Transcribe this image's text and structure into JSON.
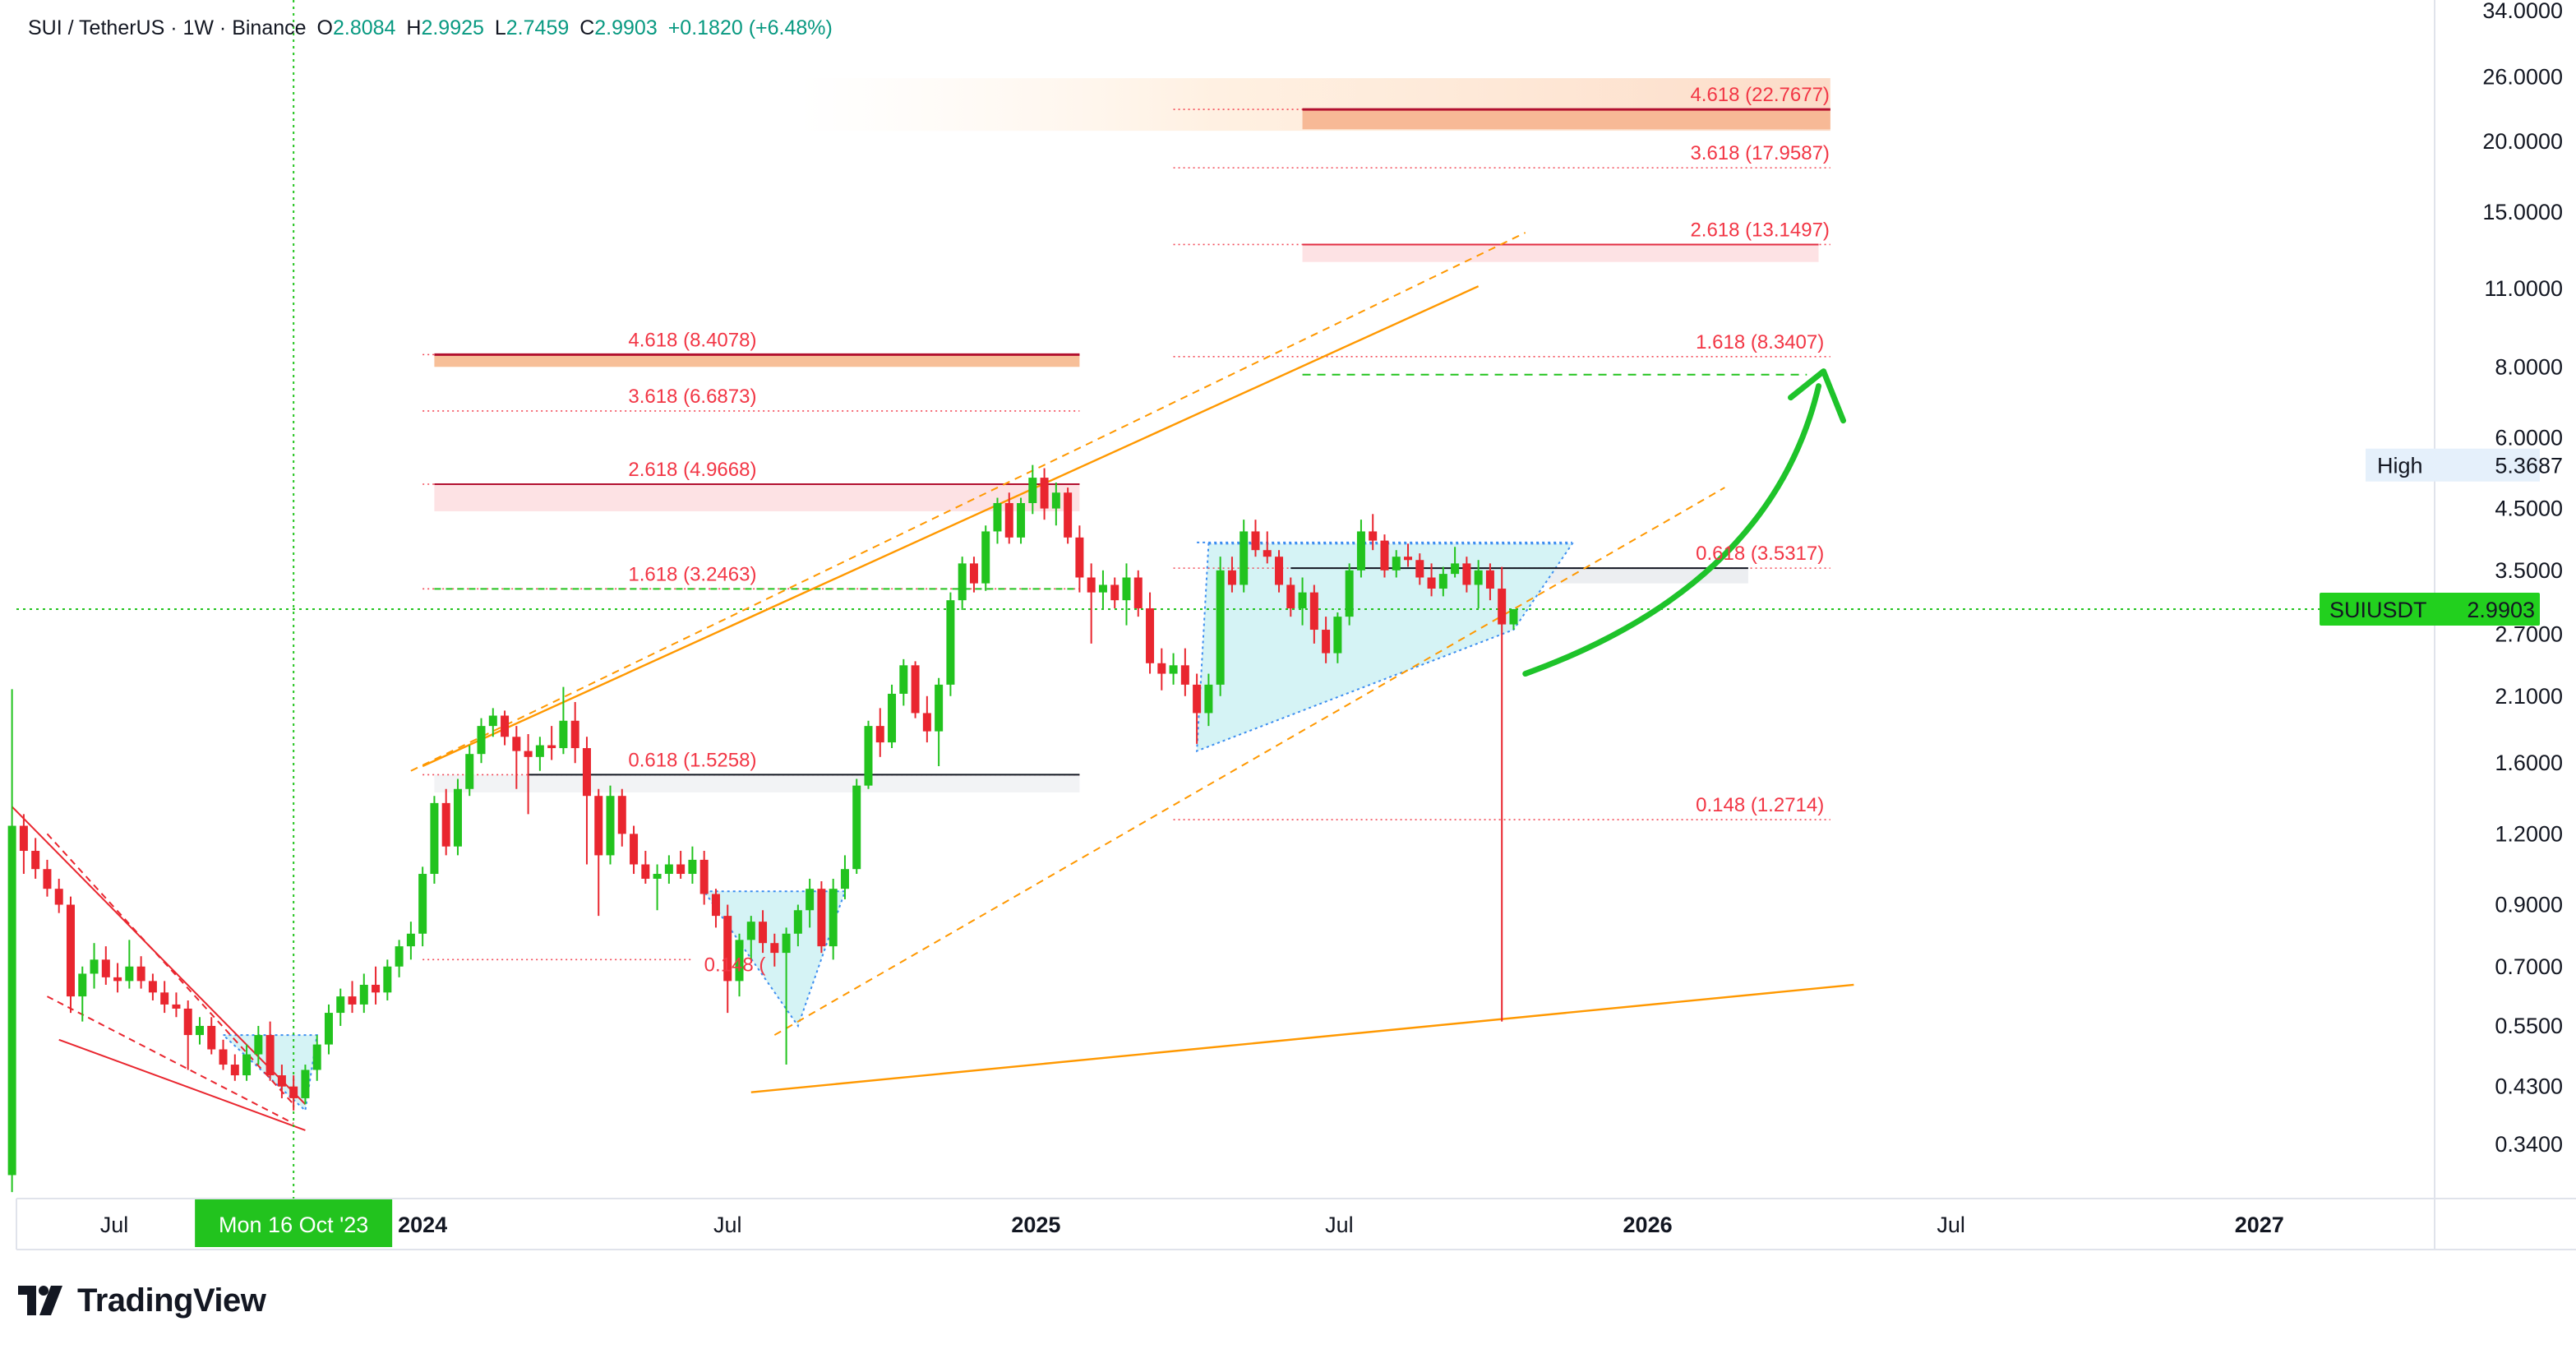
{
  "header": {
    "symbol": "SUI / TetherUS · 1W · Binance",
    "open_label": "O",
    "open": "2.8084",
    "high_label": "H",
    "high": "2.9925",
    "low_label": "L",
    "low": "2.7459",
    "close_label": "C",
    "close": "2.9903",
    "change": "+0.1820 (+6.48%)"
  },
  "brand": {
    "name": "TradingView"
  },
  "colors": {
    "up": "#22c31e",
    "down": "#e9262f",
    "fib": "#f23645",
    "channel": "#ff9800",
    "triangle_fill": "#d5f3f5",
    "crosshair": "#22c31e",
    "arrow": "#1ec32a"
  },
  "chart_data": {
    "type": "candlestick",
    "symbol": "SUIUSDT",
    "interval": "1W",
    "y_scale": "log",
    "ylim": [
      0.28,
      34.0
    ],
    "xlim": [
      "2023-04-17",
      "2027-03-08"
    ],
    "y_ticks": [
      "34.0000",
      "26.0000",
      "20.0000",
      "15.0000",
      "11.0000",
      "8.0000",
      "6.0000",
      "4.5000",
      "3.5000",
      "2.7000",
      "2.1000",
      "1.6000",
      "1.2000",
      "0.9000",
      "0.7000",
      "0.5500",
      "0.4300",
      "0.3400"
    ],
    "x_ticks": [
      {
        "date": "2023-07-01",
        "label": "Jul",
        "bold": false
      },
      {
        "date": "2024-01-01",
        "label": "2024",
        "bold": true
      },
      {
        "date": "2024-07-01",
        "label": "Jul",
        "bold": false
      },
      {
        "date": "2025-01-01",
        "label": "2025",
        "bold": true
      },
      {
        "date": "2025-07-01",
        "label": "Jul",
        "bold": false
      },
      {
        "date": "2026-01-01",
        "label": "2026",
        "bold": true
      },
      {
        "date": "2026-07-01",
        "label": "Jul",
        "bold": false
      },
      {
        "date": "2027-01-01",
        "label": "2027",
        "bold": true
      }
    ],
    "crosshair": {
      "date": "2023-10-16",
      "date_label": "Mon 16 Oct '23",
      "price": 2.9903
    },
    "last_price": {
      "label": "SUIUSDT",
      "value": "2.9903"
    },
    "high_marker": {
      "label": "High",
      "value": "5.3687"
    },
    "candles": [
      {
        "t": "2023-05-01",
        "o": 0.3,
        "h": 2.16,
        "l": 0.28,
        "c": 1.24
      },
      {
        "t": "2023-05-08",
        "o": 1.24,
        "h": 1.3,
        "l": 1.02,
        "c": 1.12
      },
      {
        "t": "2023-05-15",
        "o": 1.12,
        "h": 1.18,
        "l": 1.0,
        "c": 1.04
      },
      {
        "t": "2023-05-22",
        "o": 1.04,
        "h": 1.08,
        "l": 0.93,
        "c": 0.96
      },
      {
        "t": "2023-05-29",
        "o": 0.96,
        "h": 1.0,
        "l": 0.87,
        "c": 0.9
      },
      {
        "t": "2023-06-05",
        "o": 0.9,
        "h": 0.93,
        "l": 0.58,
        "c": 0.62
      },
      {
        "t": "2023-06-12",
        "o": 0.62,
        "h": 0.7,
        "l": 0.56,
        "c": 0.68
      },
      {
        "t": "2023-06-19",
        "o": 0.68,
        "h": 0.77,
        "l": 0.64,
        "c": 0.72
      },
      {
        "t": "2023-06-26",
        "o": 0.72,
        "h": 0.76,
        "l": 0.65,
        "c": 0.67
      },
      {
        "t": "2023-07-03",
        "o": 0.67,
        "h": 0.71,
        "l": 0.63,
        "c": 0.66
      },
      {
        "t": "2023-07-10",
        "o": 0.66,
        "h": 0.78,
        "l": 0.64,
        "c": 0.7
      },
      {
        "t": "2023-07-17",
        "o": 0.7,
        "h": 0.73,
        "l": 0.64,
        "c": 0.66
      },
      {
        "t": "2023-07-24",
        "o": 0.66,
        "h": 0.68,
        "l": 0.61,
        "c": 0.63
      },
      {
        "t": "2023-07-31",
        "o": 0.63,
        "h": 0.66,
        "l": 0.58,
        "c": 0.6
      },
      {
        "t": "2023-08-07",
        "o": 0.6,
        "h": 0.63,
        "l": 0.57,
        "c": 0.59
      },
      {
        "t": "2023-08-14",
        "o": 0.59,
        "h": 0.61,
        "l": 0.46,
        "c": 0.53
      },
      {
        "t": "2023-08-21",
        "o": 0.53,
        "h": 0.57,
        "l": 0.51,
        "c": 0.55
      },
      {
        "t": "2023-08-28",
        "o": 0.55,
        "h": 0.57,
        "l": 0.49,
        "c": 0.5
      },
      {
        "t": "2023-09-04",
        "o": 0.5,
        "h": 0.52,
        "l": 0.46,
        "c": 0.47
      },
      {
        "t": "2023-09-11",
        "o": 0.47,
        "h": 0.49,
        "l": 0.44,
        "c": 0.45
      },
      {
        "t": "2023-09-18",
        "o": 0.45,
        "h": 0.51,
        "l": 0.44,
        "c": 0.49
      },
      {
        "t": "2023-09-25",
        "o": 0.49,
        "h": 0.55,
        "l": 0.47,
        "c": 0.53
      },
      {
        "t": "2023-10-02",
        "o": 0.53,
        "h": 0.56,
        "l": 0.44,
        "c": 0.45
      },
      {
        "t": "2023-10-09",
        "o": 0.45,
        "h": 0.47,
        "l": 0.41,
        "c": 0.43
      },
      {
        "t": "2023-10-16",
        "o": 0.43,
        "h": 0.45,
        "l": 0.39,
        "c": 0.41
      },
      {
        "t": "2023-10-23",
        "o": 0.41,
        "h": 0.47,
        "l": 0.4,
        "c": 0.46
      },
      {
        "t": "2023-10-30",
        "o": 0.46,
        "h": 0.53,
        "l": 0.44,
        "c": 0.51
      },
      {
        "t": "2023-11-06",
        "o": 0.51,
        "h": 0.6,
        "l": 0.49,
        "c": 0.58
      },
      {
        "t": "2023-11-13",
        "o": 0.58,
        "h": 0.64,
        "l": 0.55,
        "c": 0.62
      },
      {
        "t": "2023-11-20",
        "o": 0.62,
        "h": 0.66,
        "l": 0.58,
        "c": 0.6
      },
      {
        "t": "2023-11-27",
        "o": 0.6,
        "h": 0.68,
        "l": 0.58,
        "c": 0.65
      },
      {
        "t": "2023-12-04",
        "o": 0.65,
        "h": 0.7,
        "l": 0.6,
        "c": 0.63
      },
      {
        "t": "2023-12-11",
        "o": 0.63,
        "h": 0.72,
        "l": 0.61,
        "c": 0.7
      },
      {
        "t": "2023-12-18",
        "o": 0.7,
        "h": 0.78,
        "l": 0.67,
        "c": 0.76
      },
      {
        "t": "2023-12-25",
        "o": 0.76,
        "h": 0.84,
        "l": 0.72,
        "c": 0.8
      },
      {
        "t": "2024-01-01",
        "o": 0.8,
        "h": 1.05,
        "l": 0.76,
        "c": 1.02
      },
      {
        "t": "2024-01-08",
        "o": 1.02,
        "h": 1.4,
        "l": 0.98,
        "c": 1.36
      },
      {
        "t": "2024-01-15",
        "o": 1.36,
        "h": 1.44,
        "l": 1.1,
        "c": 1.14
      },
      {
        "t": "2024-01-22",
        "o": 1.14,
        "h": 1.5,
        "l": 1.1,
        "c": 1.44
      },
      {
        "t": "2024-01-29",
        "o": 1.44,
        "h": 1.72,
        "l": 1.4,
        "c": 1.66
      },
      {
        "t": "2024-02-05",
        "o": 1.66,
        "h": 1.92,
        "l": 1.6,
        "c": 1.86
      },
      {
        "t": "2024-02-12",
        "o": 1.86,
        "h": 2.0,
        "l": 1.78,
        "c": 1.94
      },
      {
        "t": "2024-02-19",
        "o": 1.94,
        "h": 1.98,
        "l": 1.72,
        "c": 1.78
      },
      {
        "t": "2024-02-26",
        "o": 1.78,
        "h": 1.86,
        "l": 1.44,
        "c": 1.68
      },
      {
        "t": "2024-03-04",
        "o": 1.68,
        "h": 1.8,
        "l": 1.3,
        "c": 1.64
      },
      {
        "t": "2024-03-11",
        "o": 1.64,
        "h": 1.78,
        "l": 1.55,
        "c": 1.72
      },
      {
        "t": "2024-03-18",
        "o": 1.72,
        "h": 1.86,
        "l": 1.62,
        "c": 1.7
      },
      {
        "t": "2024-03-25",
        "o": 1.7,
        "h": 2.18,
        "l": 1.66,
        "c": 1.9
      },
      {
        "t": "2024-04-01",
        "o": 1.9,
        "h": 2.05,
        "l": 1.6,
        "c": 1.7
      },
      {
        "t": "2024-04-08",
        "o": 1.7,
        "h": 1.78,
        "l": 1.06,
        "c": 1.4
      },
      {
        "t": "2024-04-15",
        "o": 1.4,
        "h": 1.44,
        "l": 0.86,
        "c": 1.1
      },
      {
        "t": "2024-04-22",
        "o": 1.1,
        "h": 1.46,
        "l": 1.06,
        "c": 1.4
      },
      {
        "t": "2024-04-29",
        "o": 1.4,
        "h": 1.44,
        "l": 1.14,
        "c": 1.2
      },
      {
        "t": "2024-05-06",
        "o": 1.2,
        "h": 1.24,
        "l": 1.02,
        "c": 1.06
      },
      {
        "t": "2024-05-13",
        "o": 1.06,
        "h": 1.12,
        "l": 0.98,
        "c": 1.0
      },
      {
        "t": "2024-05-20",
        "o": 1.0,
        "h": 1.06,
        "l": 0.88,
        "c": 1.02
      },
      {
        "t": "2024-05-27",
        "o": 1.02,
        "h": 1.1,
        "l": 0.98,
        "c": 1.06
      },
      {
        "t": "2024-06-03",
        "o": 1.06,
        "h": 1.12,
        "l": 1.0,
        "c": 1.02
      },
      {
        "t": "2024-06-10",
        "o": 1.02,
        "h": 1.14,
        "l": 0.98,
        "c": 1.08
      },
      {
        "t": "2024-06-17",
        "o": 1.08,
        "h": 1.12,
        "l": 0.9,
        "c": 0.94
      },
      {
        "t": "2024-06-24",
        "o": 0.94,
        "h": 0.96,
        "l": 0.82,
        "c": 0.86
      },
      {
        "t": "2024-07-01",
        "o": 0.86,
        "h": 0.9,
        "l": 0.58,
        "c": 0.66
      },
      {
        "t": "2024-07-08",
        "o": 0.66,
        "h": 0.8,
        "l": 0.62,
        "c": 0.78
      },
      {
        "t": "2024-07-15",
        "o": 0.78,
        "h": 0.86,
        "l": 0.72,
        "c": 0.84
      },
      {
        "t": "2024-07-22",
        "o": 0.84,
        "h": 0.88,
        "l": 0.74,
        "c": 0.77
      },
      {
        "t": "2024-07-29",
        "o": 0.77,
        "h": 0.8,
        "l": 0.7,
        "c": 0.74
      },
      {
        "t": "2024-08-05",
        "o": 0.74,
        "h": 0.82,
        "l": 0.47,
        "c": 0.8
      },
      {
        "t": "2024-08-12",
        "o": 0.8,
        "h": 0.9,
        "l": 0.76,
        "c": 0.88
      },
      {
        "t": "2024-08-19",
        "o": 0.88,
        "h": 1.0,
        "l": 0.82,
        "c": 0.96
      },
      {
        "t": "2024-08-26",
        "o": 0.96,
        "h": 0.99,
        "l": 0.74,
        "c": 0.76
      },
      {
        "t": "2024-09-02",
        "o": 0.76,
        "h": 1.0,
        "l": 0.72,
        "c": 0.96
      },
      {
        "t": "2024-09-09",
        "o": 0.96,
        "h": 1.1,
        "l": 0.92,
        "c": 1.04
      },
      {
        "t": "2024-09-16",
        "o": 1.04,
        "h": 1.5,
        "l": 1.02,
        "c": 1.46
      },
      {
        "t": "2024-09-23",
        "o": 1.46,
        "h": 1.9,
        "l": 1.44,
        "c": 1.86
      },
      {
        "t": "2024-09-30",
        "o": 1.86,
        "h": 2.0,
        "l": 1.64,
        "c": 1.74
      },
      {
        "t": "2024-10-07",
        "o": 1.74,
        "h": 2.2,
        "l": 1.7,
        "c": 2.12
      },
      {
        "t": "2024-10-14",
        "o": 2.12,
        "h": 2.44,
        "l": 2.02,
        "c": 2.38
      },
      {
        "t": "2024-10-21",
        "o": 2.38,
        "h": 2.42,
        "l": 1.92,
        "c": 1.96
      },
      {
        "t": "2024-10-28",
        "o": 1.96,
        "h": 2.1,
        "l": 1.74,
        "c": 1.82
      },
      {
        "t": "2024-11-04",
        "o": 1.82,
        "h": 2.26,
        "l": 1.58,
        "c": 2.2
      },
      {
        "t": "2024-11-11",
        "o": 2.2,
        "h": 3.2,
        "l": 2.1,
        "c": 3.1
      },
      {
        "t": "2024-11-18",
        "o": 3.1,
        "h": 3.7,
        "l": 2.98,
        "c": 3.6
      },
      {
        "t": "2024-11-25",
        "o": 3.6,
        "h": 3.7,
        "l": 3.2,
        "c": 3.32
      },
      {
        "t": "2024-12-02",
        "o": 3.32,
        "h": 4.2,
        "l": 3.22,
        "c": 4.1
      },
      {
        "t": "2024-12-09",
        "o": 4.1,
        "h": 4.7,
        "l": 3.9,
        "c": 4.6
      },
      {
        "t": "2024-12-16",
        "o": 4.6,
        "h": 4.8,
        "l": 3.9,
        "c": 4.0
      },
      {
        "t": "2024-12-23",
        "o": 4.0,
        "h": 4.7,
        "l": 3.9,
        "c": 4.6
      },
      {
        "t": "2024-12-30",
        "o": 4.6,
        "h": 5.37,
        "l": 4.4,
        "c": 5.1
      },
      {
        "t": "2025-01-06",
        "o": 5.1,
        "h": 5.3,
        "l": 4.3,
        "c": 4.5
      },
      {
        "t": "2025-01-13",
        "o": 4.5,
        "h": 5.0,
        "l": 4.2,
        "c": 4.8
      },
      {
        "t": "2025-01-20",
        "o": 4.8,
        "h": 4.9,
        "l": 3.9,
        "c": 4.0
      },
      {
        "t": "2025-01-27",
        "o": 4.0,
        "h": 4.2,
        "l": 3.2,
        "c": 3.4
      },
      {
        "t": "2025-02-03",
        "o": 3.4,
        "h": 3.6,
        "l": 2.6,
        "c": 3.2
      },
      {
        "t": "2025-02-10",
        "o": 3.2,
        "h": 3.5,
        "l": 3.0,
        "c": 3.3
      },
      {
        "t": "2025-02-17",
        "o": 3.3,
        "h": 3.4,
        "l": 3.0,
        "c": 3.1
      },
      {
        "t": "2025-02-24",
        "o": 3.1,
        "h": 3.6,
        "l": 2.8,
        "c": 3.4
      },
      {
        "t": "2025-03-03",
        "o": 3.4,
        "h": 3.5,
        "l": 2.9,
        "c": 3.0
      },
      {
        "t": "2025-03-10",
        "o": 3.0,
        "h": 3.2,
        "l": 2.3,
        "c": 2.4
      },
      {
        "t": "2025-03-17",
        "o": 2.4,
        "h": 2.55,
        "l": 2.15,
        "c": 2.3
      },
      {
        "t": "2025-03-24",
        "o": 2.3,
        "h": 2.5,
        "l": 2.2,
        "c": 2.38
      },
      {
        "t": "2025-03-31",
        "o": 2.38,
        "h": 2.55,
        "l": 2.1,
        "c": 2.2
      },
      {
        "t": "2025-04-07",
        "o": 2.2,
        "h": 2.3,
        "l": 1.73,
        "c": 1.96
      },
      {
        "t": "2025-04-14",
        "o": 1.96,
        "h": 2.3,
        "l": 1.86,
        "c": 2.2
      },
      {
        "t": "2025-04-21",
        "o": 2.2,
        "h": 3.7,
        "l": 2.1,
        "c": 3.5
      },
      {
        "t": "2025-04-28",
        "o": 3.5,
        "h": 3.7,
        "l": 3.2,
        "c": 3.3
      },
      {
        "t": "2025-05-05",
        "o": 3.3,
        "h": 4.3,
        "l": 3.2,
        "c": 4.1
      },
      {
        "t": "2025-05-12",
        "o": 4.1,
        "h": 4.3,
        "l": 3.7,
        "c": 3.8
      },
      {
        "t": "2025-05-19",
        "o": 3.8,
        "h": 4.1,
        "l": 3.6,
        "c": 3.7
      },
      {
        "t": "2025-05-26",
        "o": 3.7,
        "h": 3.8,
        "l": 3.2,
        "c": 3.3
      },
      {
        "t": "2025-06-02",
        "o": 3.3,
        "h": 3.4,
        "l": 2.9,
        "c": 3.0
      },
      {
        "t": "2025-06-09",
        "o": 3.0,
        "h": 3.4,
        "l": 2.8,
        "c": 3.2
      },
      {
        "t": "2025-06-16",
        "o": 3.2,
        "h": 3.3,
        "l": 2.6,
        "c": 2.75
      },
      {
        "t": "2025-06-23",
        "o": 2.75,
        "h": 2.9,
        "l": 2.4,
        "c": 2.5
      },
      {
        "t": "2025-06-30",
        "o": 2.5,
        "h": 2.95,
        "l": 2.4,
        "c": 2.9
      },
      {
        "t": "2025-07-07",
        "o": 2.9,
        "h": 3.6,
        "l": 2.8,
        "c": 3.5
      },
      {
        "t": "2025-07-14",
        "o": 3.5,
        "h": 4.3,
        "l": 3.4,
        "c": 4.1
      },
      {
        "t": "2025-07-21",
        "o": 4.1,
        "h": 4.4,
        "l": 3.8,
        "c": 3.95
      },
      {
        "t": "2025-07-28",
        "o": 3.95,
        "h": 4.05,
        "l": 3.4,
        "c": 3.5
      },
      {
        "t": "2025-08-04",
        "o": 3.5,
        "h": 3.8,
        "l": 3.4,
        "c": 3.7
      },
      {
        "t": "2025-08-11",
        "o": 3.7,
        "h": 3.9,
        "l": 3.55,
        "c": 3.65
      },
      {
        "t": "2025-08-18",
        "o": 3.65,
        "h": 3.75,
        "l": 3.3,
        "c": 3.4
      },
      {
        "t": "2025-08-25",
        "o": 3.4,
        "h": 3.6,
        "l": 3.15,
        "c": 3.25
      },
      {
        "t": "2025-09-01",
        "o": 3.25,
        "h": 3.55,
        "l": 3.15,
        "c": 3.45
      },
      {
        "t": "2025-09-08",
        "o": 3.45,
        "h": 3.85,
        "l": 3.4,
        "c": 3.6
      },
      {
        "t": "2025-09-15",
        "o": 3.6,
        "h": 3.7,
        "l": 3.2,
        "c": 3.3
      },
      {
        "t": "2025-09-22",
        "o": 3.3,
        "h": 3.65,
        "l": 3.0,
        "c": 3.5
      },
      {
        "t": "2025-09-29",
        "o": 3.5,
        "h": 3.6,
        "l": 3.1,
        "c": 3.25
      },
      {
        "t": "2025-10-06",
        "o": 3.25,
        "h": 3.55,
        "l": 0.56,
        "c": 2.81
      },
      {
        "t": "2025-10-13",
        "o": 2.81,
        "h": 2.99,
        "l": 2.75,
        "c": 2.99
      }
    ],
    "fib_levels": [
      {
        "label": "4.618 (22.7677)",
        "value": 22.7677,
        "from": "2025-03-24",
        "to": "2026-04-20",
        "style": "dotted"
      },
      {
        "label": "3.618 (17.9587)",
        "value": 17.9587,
        "from": "2025-03-24",
        "to": "2026-04-20",
        "style": "dotted"
      },
      {
        "label": "2.618 (13.1497)",
        "value": 13.1497,
        "from": "2025-03-24",
        "to": "2026-04-20",
        "style": "dotted"
      },
      {
        "label": "1.618 (8.3407)",
        "value": 8.3407,
        "from": "2025-03-24",
        "to": "2026-04-20",
        "style": "dotted"
      },
      {
        "label": "0.618 (3.5317)",
        "value": 3.5317,
        "from": "2025-03-24",
        "to": "2026-04-20",
        "style": "dotted"
      },
      {
        "label": "0.148 (1.2714)",
        "value": 1.2714,
        "from": "2025-03-24",
        "to": "2026-04-20",
        "style": "dotted"
      },
      {
        "label": "4.618 (8.4078)",
        "value": 8.4078,
        "from": "2024-01-01",
        "to": "2025-01-27",
        "style": "dotted"
      },
      {
        "label": "3.618 (6.6873)",
        "value": 6.6873,
        "from": "2024-01-01",
        "to": "2025-01-27",
        "style": "dotted"
      },
      {
        "label": "2.618 (4.9668)",
        "value": 4.9668,
        "from": "2024-01-01",
        "to": "2025-01-27",
        "style": "dotted"
      },
      {
        "label": "1.618 (3.2463)",
        "value": 3.2463,
        "from": "2024-01-01",
        "to": "2025-01-27",
        "style": "dotted"
      },
      {
        "label": "0.618 (1.5258)",
        "value": 1.5258,
        "from": "2024-01-01",
        "to": "2025-01-27",
        "style": "dotted"
      },
      {
        "label": "0.148 (",
        "value": 0.72,
        "from": "2024-01-01",
        "to": "2024-06-10",
        "style": "dotted"
      }
    ],
    "target_level": 7.75,
    "channel_lines": [
      {
        "from": [
          "2024-01-01",
          1.58
        ],
        "to": [
          "2025-09-22",
          11.1
        ],
        "style": "solid"
      },
      {
        "from": [
          "2023-12-25",
          1.55
        ],
        "to": [
          "2025-10-20",
          13.8
        ],
        "style": "dashed"
      },
      {
        "from": [
          "2024-07-29",
          0.53
        ],
        "to": [
          "2026-02-16",
          4.9
        ],
        "style": "dashed"
      },
      {
        "from": [
          "2024-07-15",
          0.42
        ],
        "to": [
          "2026-05-04",
          0.65
        ],
        "style": "solid"
      }
    ]
  }
}
